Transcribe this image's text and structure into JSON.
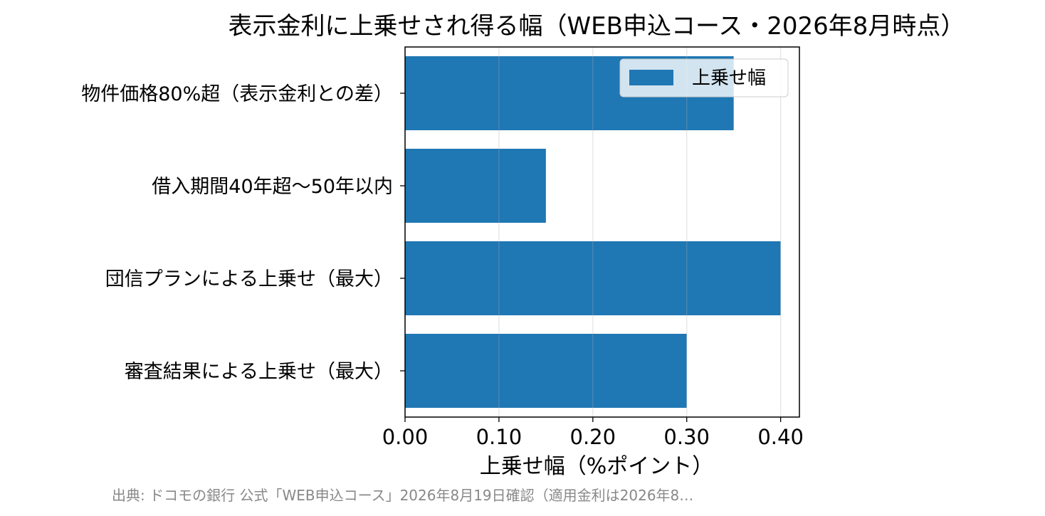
{
  "chart_data": {
    "type": "bar",
    "orientation": "horizontal",
    "title": "表示金利に上乗せされ得る幅（WEB申込コース・2026年8月時点）",
    "xlabel": "上乗せ幅（%ポイント）",
    "ylabel": "",
    "categories": [
      "物件価格80%超（表示金利との差）",
      "借入期間40年超〜50年以内",
      "団信プランによる上乗せ（最大）",
      "審査結果による上乗せ（最大）"
    ],
    "series": [
      {
        "name": "上乗せ幅",
        "values": [
          0.35,
          0.15,
          0.4,
          0.3
        ]
      }
    ],
    "xlim": [
      0,
      0.42
    ],
    "xticks": [
      0.0,
      0.1,
      0.2,
      0.3,
      0.4
    ],
    "xtick_labels": [
      "0.00",
      "0.10",
      "0.20",
      "0.30",
      "0.40"
    ],
    "grid": "vertical",
    "legend": "top-right",
    "bar_color": "#1f77b4",
    "source": "出典: ドコモの銀行 公式「WEB申込コース」2026年8月19日確認（適用金利は2026年8…"
  }
}
